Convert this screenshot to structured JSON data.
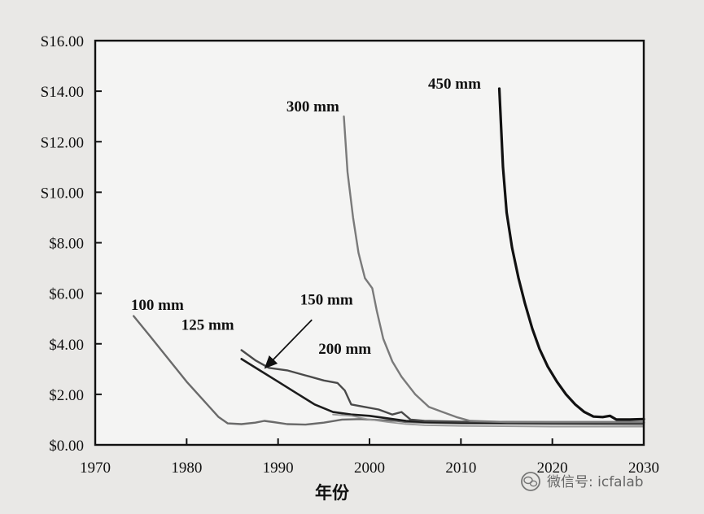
{
  "chart_data": {
    "type": "line",
    "title": "",
    "xlabel": "年份",
    "ylabel": "",
    "xlim": [
      1970,
      2030
    ],
    "ylim": [
      0,
      16
    ],
    "x_ticks": [
      1970,
      1980,
      1990,
      2000,
      2010,
      2020,
      2030
    ],
    "y_ticks": [
      0,
      2,
      4,
      6,
      8,
      10,
      12,
      14,
      16
    ],
    "y_tick_labels": [
      "$0.00",
      "$2.00",
      "$4.00",
      "$6.00",
      "$8.00",
      "S10.00",
      "S12.00",
      "S14.00",
      "S16.00"
    ],
    "grid": false,
    "series": [
      {
        "name": "100 mm",
        "color": "#6a6a6a",
        "width": 2.4,
        "points": [
          [
            1974.2,
            5.1
          ],
          [
            1976,
            4.3
          ],
          [
            1978,
            3.4
          ],
          [
            1980,
            2.5
          ],
          [
            1982,
            1.7
          ],
          [
            1983.5,
            1.1
          ],
          [
            1984.5,
            0.85
          ],
          [
            1986,
            0.82
          ],
          [
            1987.5,
            0.88
          ],
          [
            1988.5,
            0.95
          ],
          [
            1989.5,
            0.9
          ],
          [
            1991,
            0.82
          ],
          [
            1993,
            0.8
          ],
          [
            1995,
            0.88
          ],
          [
            1997,
            1.0
          ],
          [
            1999,
            1.02
          ],
          [
            2001,
            0.98
          ],
          [
            2003,
            0.95
          ],
          [
            2004,
            0.9
          ],
          [
            2006,
            0.88
          ],
          [
            2010,
            0.85
          ],
          [
            2020,
            0.82
          ],
          [
            2030,
            0.8
          ]
        ]
      },
      {
        "name": "125 mm",
        "color": "#1c1c1c",
        "width": 2.6,
        "points": [
          [
            1986,
            3.4
          ],
          [
            1988,
            2.95
          ],
          [
            1990,
            2.5
          ],
          [
            1992,
            2.05
          ],
          [
            1994,
            1.6
          ],
          [
            1996,
            1.3
          ],
          [
            1998,
            1.2
          ],
          [
            2000,
            1.15
          ],
          [
            2002,
            1.05
          ],
          [
            2004,
            0.95
          ],
          [
            2006,
            0.9
          ],
          [
            2010,
            0.88
          ],
          [
            2020,
            0.88
          ],
          [
            2030,
            0.88
          ]
        ]
      },
      {
        "name": "150 mm",
        "color": "#4a4a4a",
        "width": 2.4,
        "points": [
          [
            1986,
            3.75
          ],
          [
            1987.5,
            3.35
          ],
          [
            1989,
            3.05
          ],
          [
            1991,
            2.95
          ],
          [
            1993,
            2.75
          ],
          [
            1995,
            2.55
          ],
          [
            1996.5,
            2.45
          ],
          [
            1997.3,
            2.15
          ],
          [
            1998,
            1.6
          ],
          [
            1999.5,
            1.5
          ],
          [
            2001,
            1.4
          ],
          [
            2002.5,
            1.2
          ],
          [
            2003.5,
            1.3
          ],
          [
            2004.5,
            1.0
          ],
          [
            2006,
            0.95
          ],
          [
            2010,
            0.92
          ],
          [
            2020,
            0.9
          ],
          [
            2030,
            0.9
          ]
        ]
      },
      {
        "name": "200 mm",
        "color": "#9a9a9a",
        "width": 1.8,
        "points": [
          [
            1996,
            1.2
          ],
          [
            1998,
            1.15
          ],
          [
            2000,
            1.0
          ],
          [
            2002,
            0.9
          ],
          [
            2004,
            0.82
          ],
          [
            2006,
            0.78
          ],
          [
            2010,
            0.75
          ],
          [
            2020,
            0.72
          ],
          [
            2030,
            0.72
          ]
        ]
      },
      {
        "name": "300 mm",
        "color": "#7a7a7a",
        "width": 2.4,
        "points": [
          [
            1997.2,
            13.0
          ],
          [
            1997.6,
            10.8
          ],
          [
            1998.2,
            9.0
          ],
          [
            1998.8,
            7.6
          ],
          [
            1999.5,
            6.6
          ],
          [
            2000.3,
            6.2
          ],
          [
            2000.8,
            5.3
          ],
          [
            2001.5,
            4.2
          ],
          [
            2002.5,
            3.3
          ],
          [
            2003.5,
            2.7
          ],
          [
            2005,
            2.0
          ],
          [
            2006.5,
            1.5
          ],
          [
            2008,
            1.3
          ],
          [
            2009.5,
            1.1
          ],
          [
            2011,
            0.95
          ],
          [
            2015,
            0.9
          ],
          [
            2020,
            0.9
          ],
          [
            2030,
            0.9
          ]
        ]
      },
      {
        "name": "450 mm",
        "color": "#111111",
        "width": 3.2,
        "points": [
          [
            2014.2,
            14.1
          ],
          [
            2014.6,
            11.0
          ],
          [
            2015,
            9.2
          ],
          [
            2015.6,
            7.8
          ],
          [
            2016.3,
            6.6
          ],
          [
            2017,
            5.6
          ],
          [
            2017.8,
            4.6
          ],
          [
            2018.6,
            3.8
          ],
          [
            2019.5,
            3.1
          ],
          [
            2020.5,
            2.5
          ],
          [
            2021.5,
            2.0
          ],
          [
            2022.5,
            1.6
          ],
          [
            2023.5,
            1.3
          ],
          [
            2024.5,
            1.12
          ],
          [
            2025.5,
            1.1
          ],
          [
            2026.3,
            1.15
          ],
          [
            2027,
            1.0
          ],
          [
            2028.5,
            1.0
          ],
          [
            2030,
            1.02
          ]
        ]
      }
    ],
    "annotations": [
      {
        "text": "100 mm",
        "x": 1976.8,
        "y": 5.35
      },
      {
        "text": "125 mm",
        "x": 1982.3,
        "y": 4.55
      },
      {
        "text": "150 mm",
        "x": 1995.3,
        "y": 5.55
      },
      {
        "text": "200 mm",
        "x": 1997.3,
        "y": 3.6
      },
      {
        "text": "300 mm",
        "x": 1993.8,
        "y": 13.2
      },
      {
        "text": "450 mm",
        "x": 2009.3,
        "y": 14.1
      }
    ],
    "arrow": {
      "from": [
        1993.7,
        4.95
      ],
      "to": [
        1988.6,
        3.05
      ]
    }
  },
  "watermark": {
    "icon": "wechat-icon",
    "text": "微信号: icfalab"
  }
}
